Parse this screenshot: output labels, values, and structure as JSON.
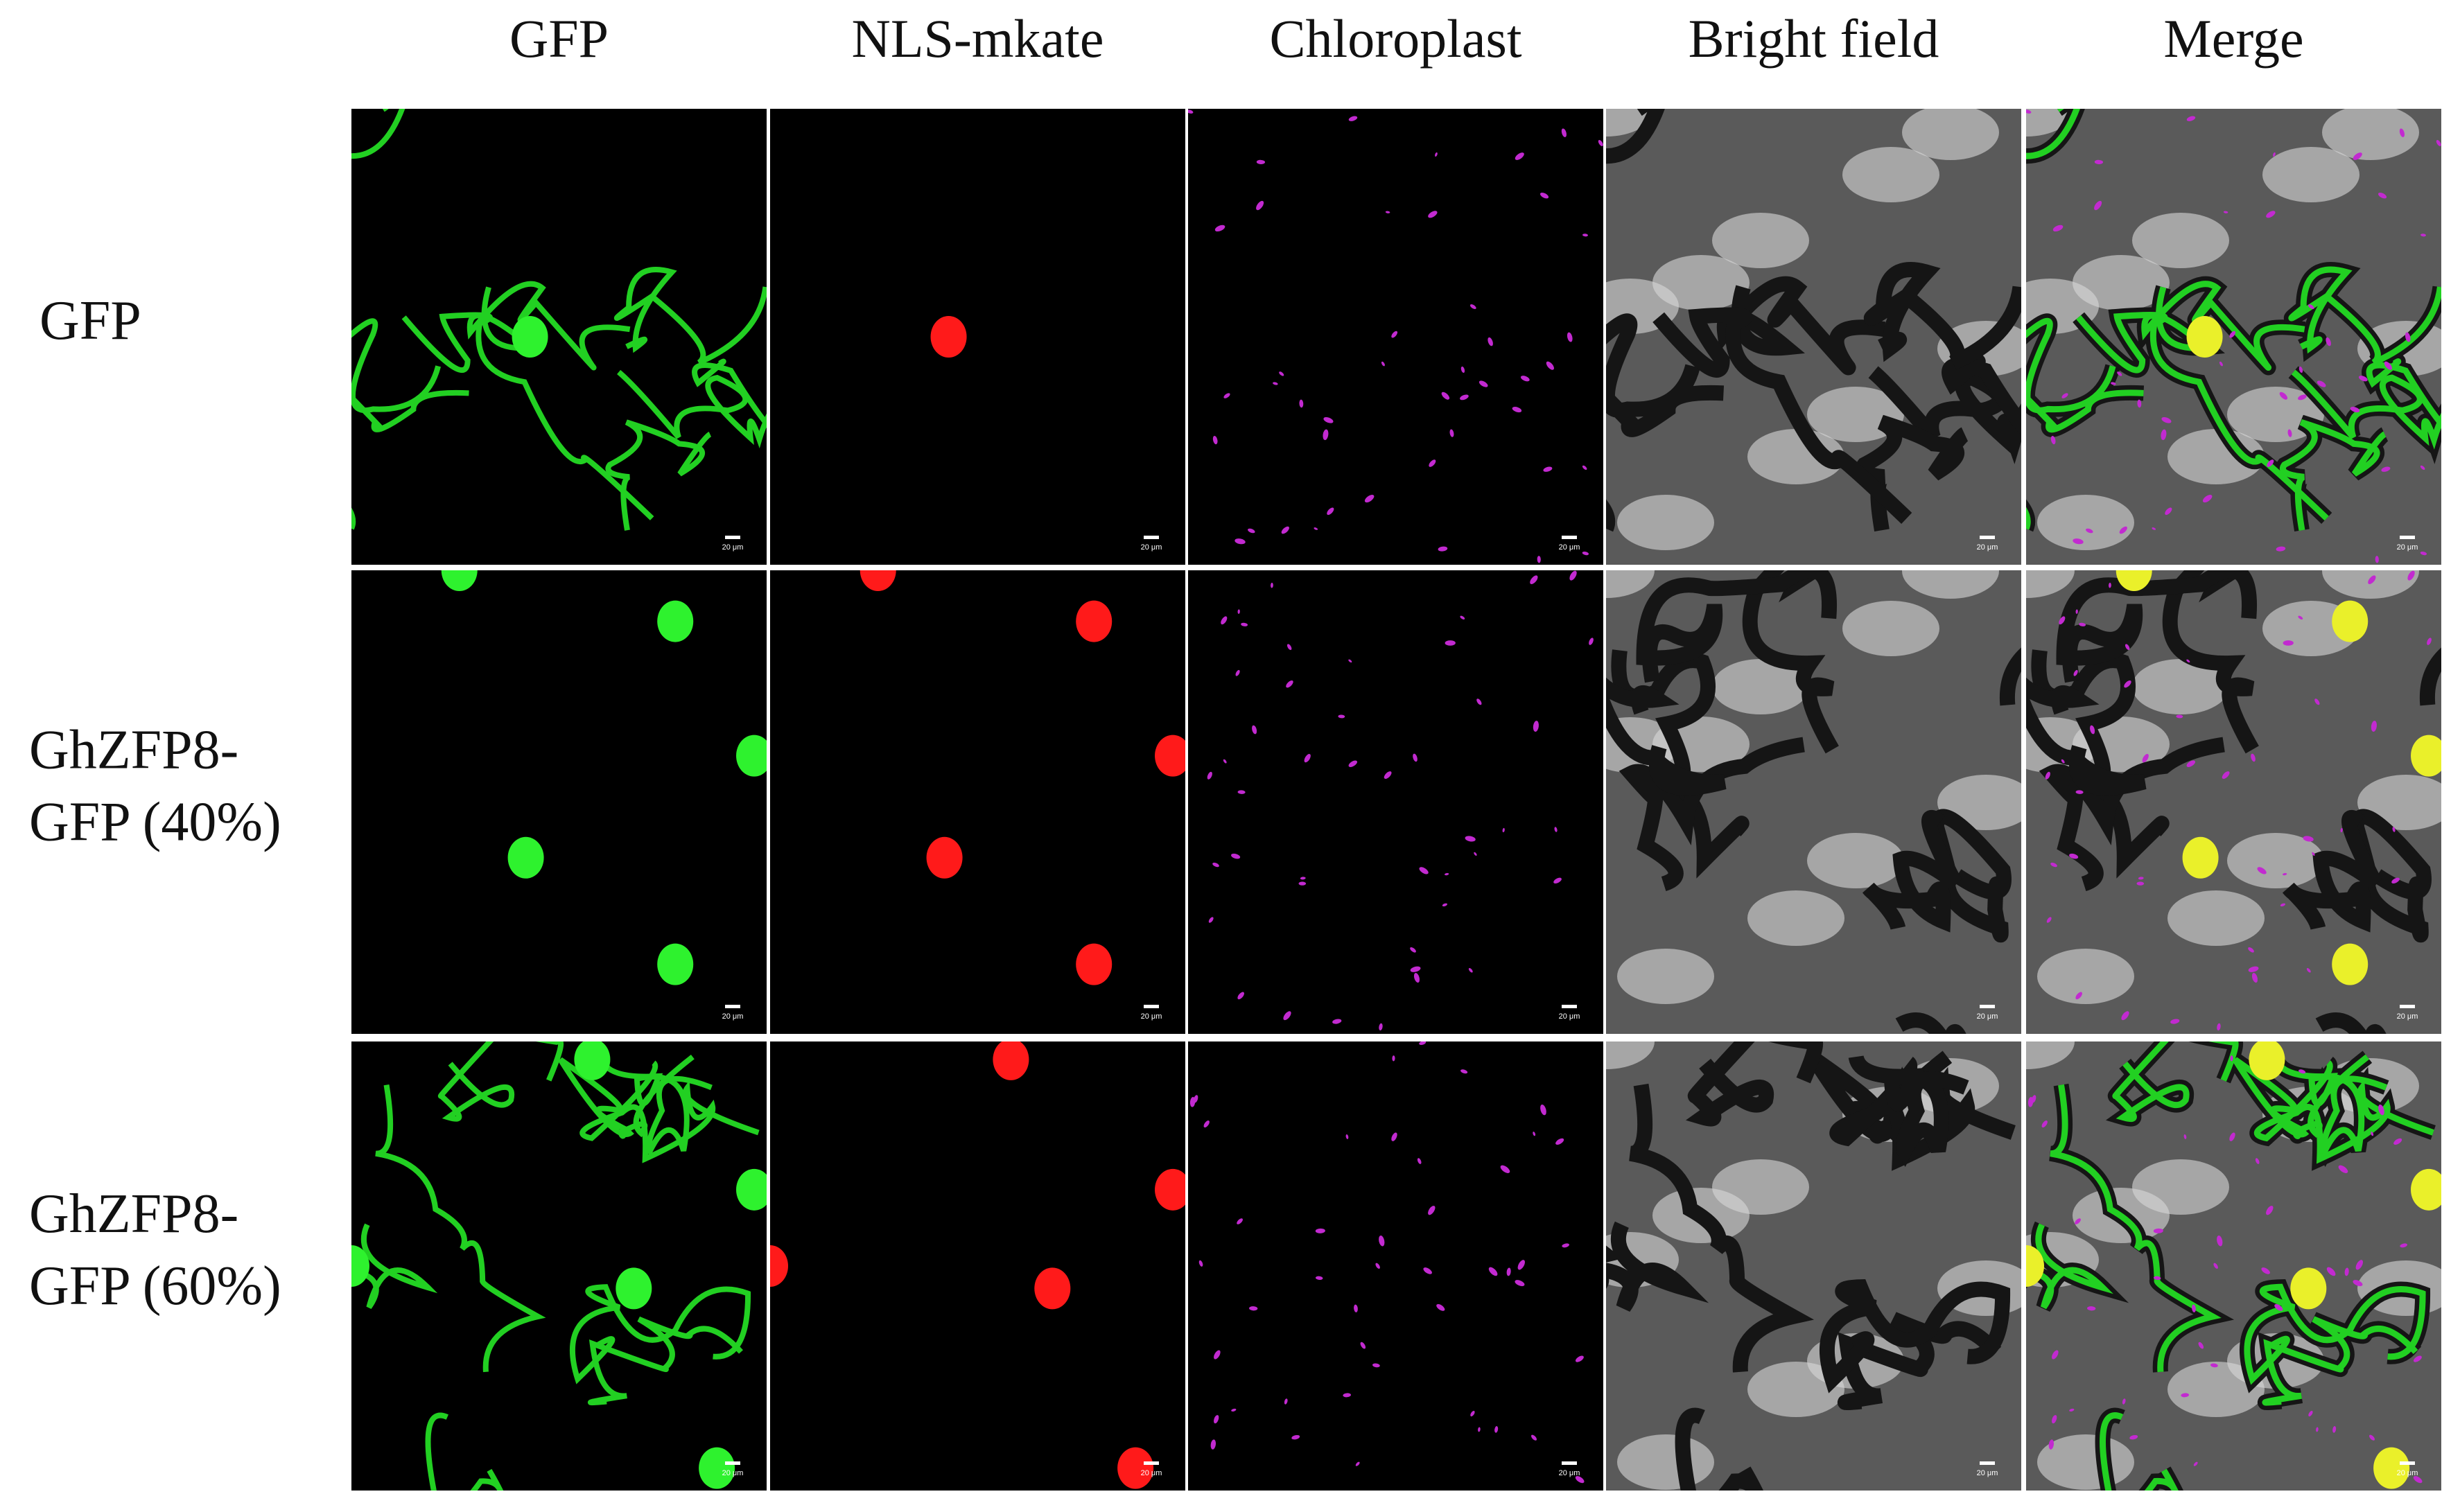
{
  "column_headers": [
    "GFP",
    "NLS-mkate",
    "Chloroplast",
    "Bright field",
    "Merge"
  ],
  "rows": [
    {
      "label": [
        "GFP"
      ]
    },
    {
      "label": [
        "GhZFP8-",
        "GFP (40%)"
      ]
    },
    {
      "label": [
        "GhZFP8-",
        "GFP (60%)"
      ]
    }
  ],
  "scale_bar": "20 μm"
}
